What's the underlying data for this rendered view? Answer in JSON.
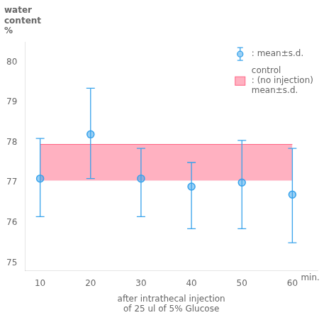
{
  "chart_data": {
    "type": "scatter",
    "ylabel": [
      "water",
      "content",
      "%"
    ],
    "xlabel": [
      "after intrathecal injection",
      "of 25 ul of 5% Glucose"
    ],
    "x_unit": "min.",
    "x": [
      10,
      20,
      30,
      40,
      50,
      60
    ],
    "series": [
      {
        "name": ": mean±s.d.",
        "type": "errorbar",
        "marker": "circle",
        "values": [
          77.1,
          78.2,
          77.1,
          76.9,
          77.0,
          76.7
        ],
        "y_upper": [
          78.1,
          79.35,
          77.85,
          77.5,
          78.05,
          77.85
        ],
        "y_lower": [
          76.15,
          77.1,
          76.15,
          75.85,
          75.85,
          75.5
        ]
      },
      {
        "name": [
          "control",
          ": (no injection)",
          "mean±s.d."
        ],
        "type": "band",
        "x_range": [
          10,
          60
        ],
        "lower": 77.05,
        "upper": 77.95
      }
    ],
    "xlim": [
      7,
      65
    ],
    "ylim": [
      74.8,
      80.5
    ],
    "xticks": [
      10,
      20,
      30,
      40,
      50,
      60
    ],
    "yticks": [
      75,
      76,
      77,
      78,
      79,
      80
    ],
    "grid": false,
    "legend": "upper right"
  }
}
